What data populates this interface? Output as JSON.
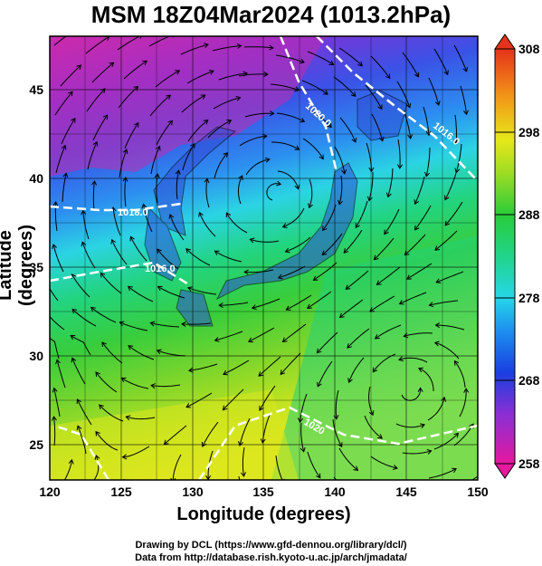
{
  "title": "MSM 18Z04Mar2024 (1013.2hPa)",
  "x_axis": {
    "label": "Longitude (degrees)",
    "min": 120,
    "max": 150,
    "ticks": [
      "120",
      "125",
      "130",
      "135",
      "140",
      "145",
      "150"
    ]
  },
  "y_axis": {
    "label": "Latitude  (degrees)",
    "min": 22.5,
    "max": 47.5,
    "ticks": [
      "25",
      "30",
      "35",
      "40",
      "45"
    ]
  },
  "colorbar": {
    "min": 258,
    "max": 308,
    "ticks": [
      "258",
      "268",
      "278",
      "288",
      "298",
      "308"
    ]
  },
  "isobars": [
    {
      "label": "1020.0"
    },
    {
      "label": "1016.0"
    },
    {
      "label": "1018.0"
    },
    {
      "label": "1016.0"
    },
    {
      "label": "1020"
    }
  ],
  "credits": {
    "line1": "Drawing by DCL (https://www.gfd-dennou.org/library/dcl/)",
    "line2": "Data from http://database.rish.kyoto-u.ac.jp/arch/jmadata/"
  }
}
